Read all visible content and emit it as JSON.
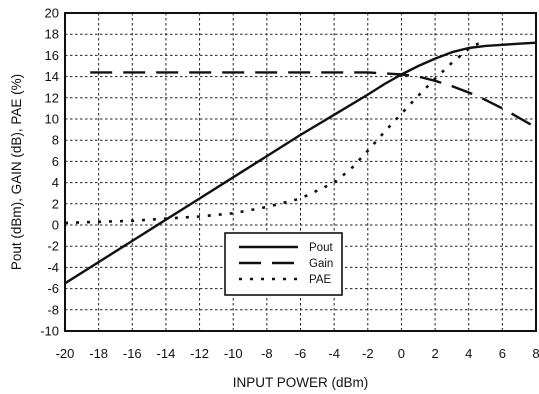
{
  "chart_data": {
    "type": "line",
    "xlabel": "INPUT POWER (dBm)",
    "ylabel": "Pout (dBm), GAIN (dB), PAE (%)",
    "xlim": [
      -20,
      8
    ],
    "ylim": [
      -10,
      20
    ],
    "xticks": [
      -20,
      -18,
      -16,
      -14,
      -12,
      -10,
      -8,
      -6,
      -4,
      -2,
      0,
      2,
      4,
      6,
      8
    ],
    "yticks": [
      -10,
      -8,
      -6,
      -4,
      -2,
      0,
      2,
      4,
      6,
      8,
      10,
      12,
      14,
      16,
      18,
      20
    ],
    "grid": true,
    "legend_position": "center",
    "series": [
      {
        "name": "Pout",
        "line_style": "solid",
        "x": [
          -20,
          -18,
          -16,
          -14,
          -12,
          -10,
          -8,
          -6,
          -4,
          -2,
          -1,
          0,
          1,
          2,
          3,
          4,
          5,
          6,
          7,
          8
        ],
        "y": [
          -5.5,
          -3.5,
          -1.5,
          0.5,
          2.5,
          4.5,
          6.5,
          8.5,
          10.4,
          12.3,
          13.3,
          14.2,
          15.0,
          15.7,
          16.3,
          16.7,
          16.9,
          17.0,
          17.1,
          17.2
        ]
      },
      {
        "name": "Gain",
        "line_style": "dashed",
        "x": [
          -18.5,
          -2,
          -1,
          0,
          1,
          2,
          3,
          4,
          5,
          6,
          7,
          8
        ],
        "y": [
          14.4,
          14.4,
          14.3,
          14.2,
          14.0,
          13.6,
          13.1,
          12.5,
          11.8,
          11.0,
          10.1,
          9.2
        ]
      },
      {
        "name": "PAE",
        "line_style": "dotted",
        "x": [
          -20,
          -18,
          -16,
          -14,
          -12,
          -10,
          -8,
          -6,
          -4,
          -3,
          -2,
          -1,
          0,
          1,
          2,
          3,
          4,
          5
        ],
        "y": [
          0.2,
          0.3,
          0.4,
          0.6,
          0.8,
          1.1,
          1.7,
          2.5,
          4.0,
          5.3,
          7.0,
          8.8,
          10.5,
          12.2,
          13.8,
          15.3,
          16.6,
          17.5
        ]
      }
    ]
  },
  "colors": {
    "line": "#111111",
    "grid": "#222222",
    "background": "#ffffff"
  }
}
